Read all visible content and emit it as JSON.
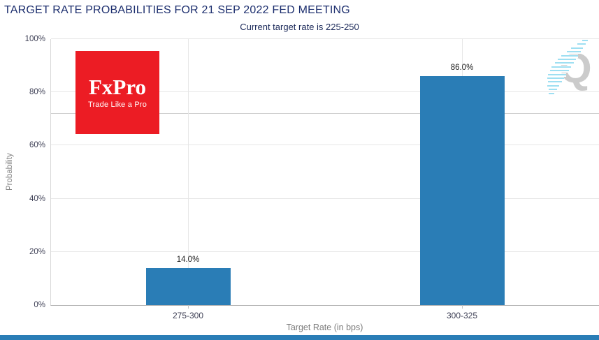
{
  "header": {
    "title": "TARGET RATE PROBABILITIES FOR 21 SEP 2022 FED MEETING",
    "subtitle": "Current target rate is 225-250"
  },
  "chart_data": {
    "type": "bar",
    "title": "TARGET RATE PROBABILITIES FOR 21 SEP 2022 FED MEETING",
    "subtitle": "Current target rate is 225-250",
    "xlabel": "Target Rate (in bps)",
    "ylabel": "Probability",
    "categories": [
      "275-300",
      "300-325"
    ],
    "values": [
      14.0,
      86.0
    ],
    "value_labels": [
      "14.0%",
      "86.0%"
    ],
    "ylim": [
      0,
      100
    ],
    "yticks": [
      0,
      20,
      40,
      60,
      80,
      100
    ],
    "ytick_labels": [
      "0%",
      "20%",
      "40%",
      "60%",
      "80%",
      "100%"
    ],
    "grid": true,
    "legend": "none",
    "crosshair_y_pct": 72,
    "bar_color": "#2a7db6"
  },
  "branding": {
    "fxpro": {
      "wordmark": "FxPro",
      "tagline": "Trade Like a Pro",
      "bg_color": "#ec1c24"
    },
    "watermark": {
      "letter": "Q",
      "letter_color": "#cbcbcb",
      "hatch_color": "#9edff2"
    }
  },
  "colors": {
    "title": "#1c2e6e",
    "subtitle": "#1c2a5a",
    "grid": "#e6e6e6",
    "axis": "#b3b3b3",
    "bottom_bar": "#2a7db6"
  }
}
